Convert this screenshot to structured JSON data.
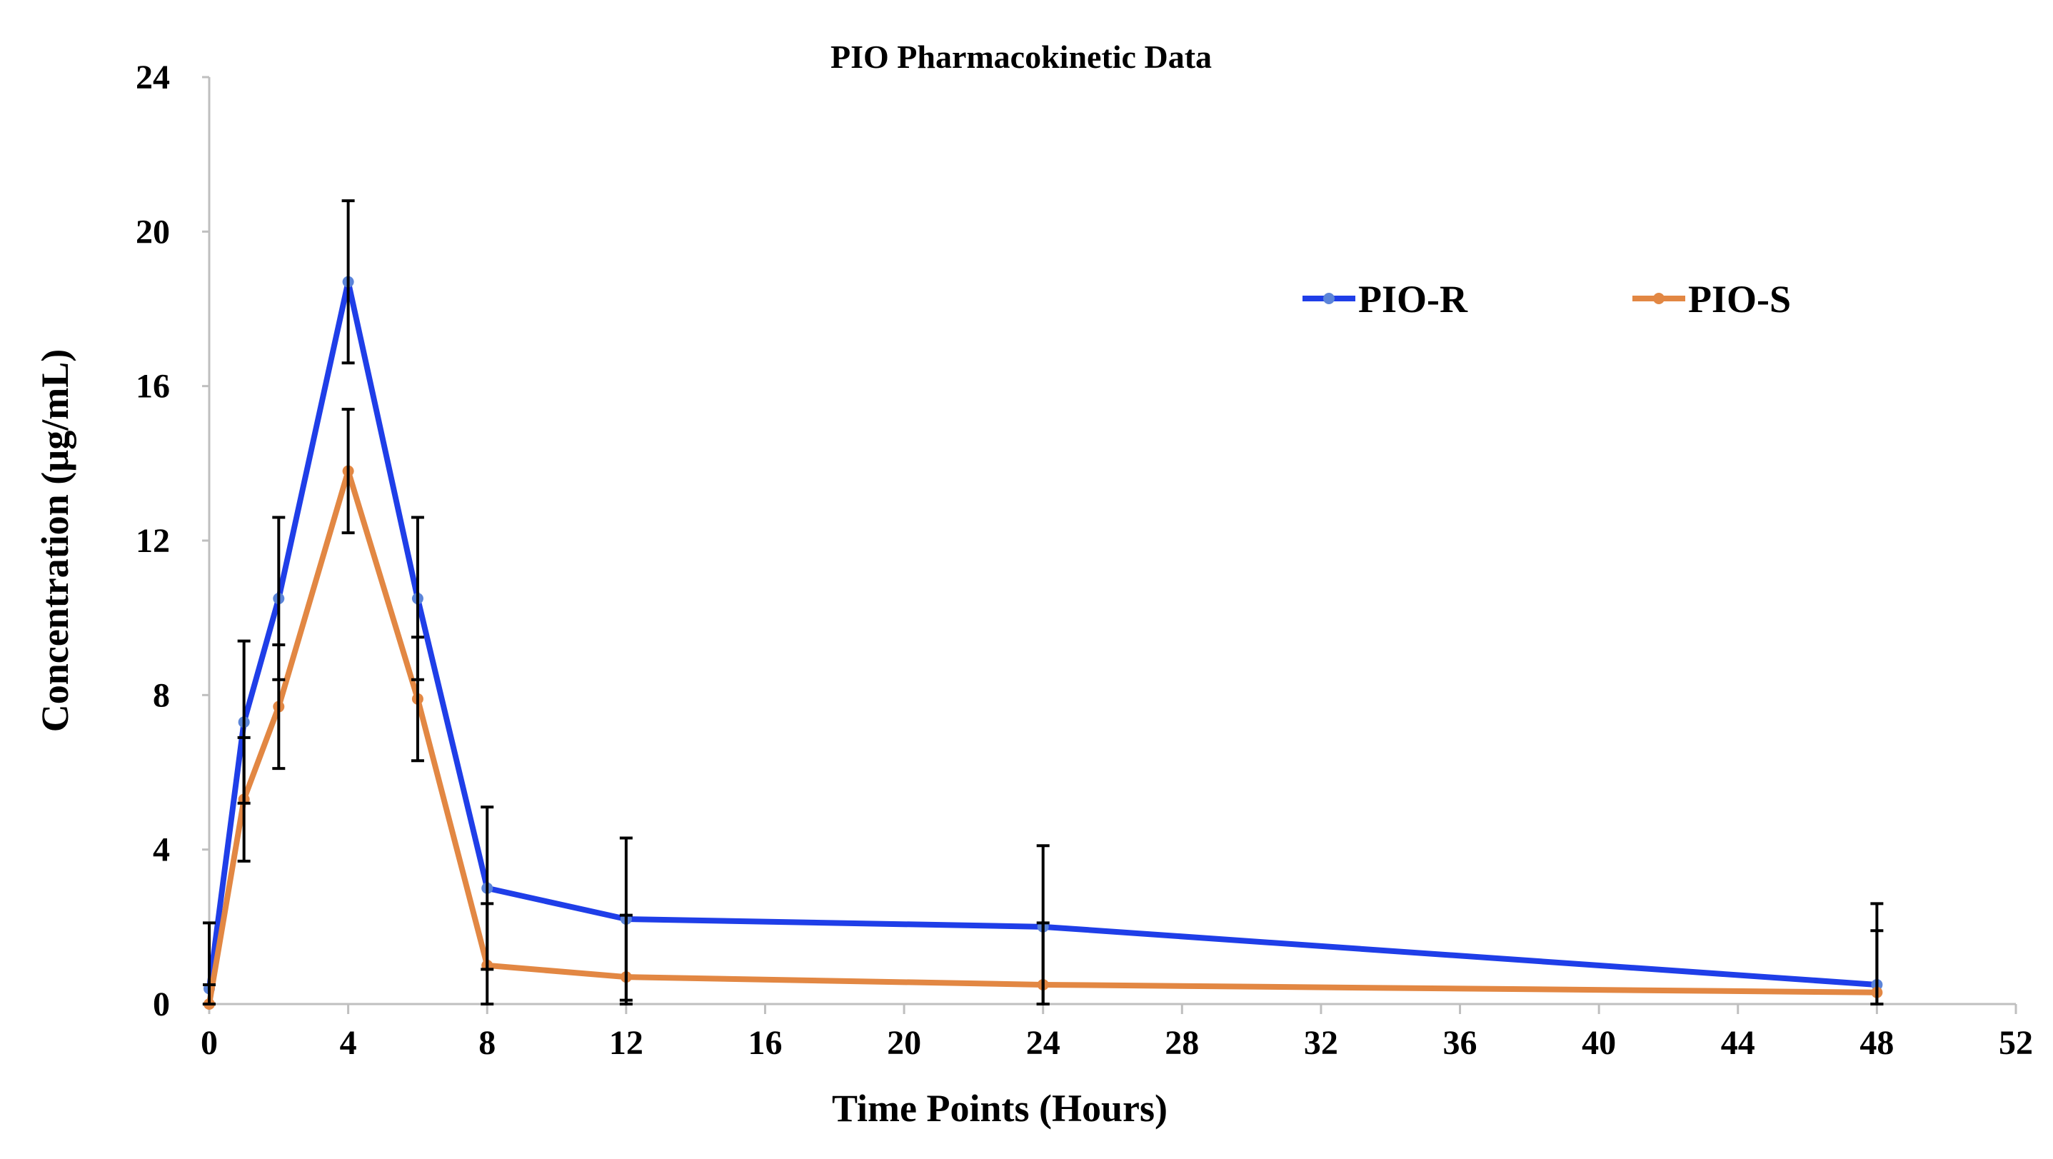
{
  "chart_data": {
    "type": "line",
    "title": "PIO Pharmacokinetic Data",
    "xlabel": "Time Points (Hours)",
    "ylabel": "Concentration (µg/mL)",
    "xlim": [
      0,
      52
    ],
    "ylim": [
      0,
      24
    ],
    "xticks": [
      "0",
      "4",
      "8",
      "12",
      "16",
      "20",
      "24",
      "28",
      "32",
      "36",
      "40",
      "44",
      "48",
      "52"
    ],
    "yticks": [
      "0",
      "4",
      "8",
      "12",
      "16",
      "20",
      "24"
    ],
    "grid": false,
    "legend_position": "top-right",
    "x": [
      0,
      1,
      2,
      4,
      6,
      8,
      12,
      24,
      48
    ],
    "series": [
      {
        "name": "PIO-R",
        "color": "#1f3ee8",
        "values": [
          0.4,
          7.3,
          10.5,
          18.7,
          10.5,
          3.0,
          2.2,
          2.0,
          0.5
        ],
        "error": [
          1.7,
          2.1,
          2.1,
          2.1,
          2.1,
          2.1,
          2.1,
          2.1,
          2.1
        ]
      },
      {
        "name": "PIO-S",
        "color": "#e28743",
        "values": [
          0.0,
          5.3,
          7.7,
          13.8,
          7.9,
          1.0,
          0.7,
          0.5,
          0.3
        ],
        "error": [
          0.5,
          1.6,
          1.6,
          1.6,
          1.6,
          1.6,
          1.6,
          1.6,
          1.6
        ]
      }
    ]
  }
}
